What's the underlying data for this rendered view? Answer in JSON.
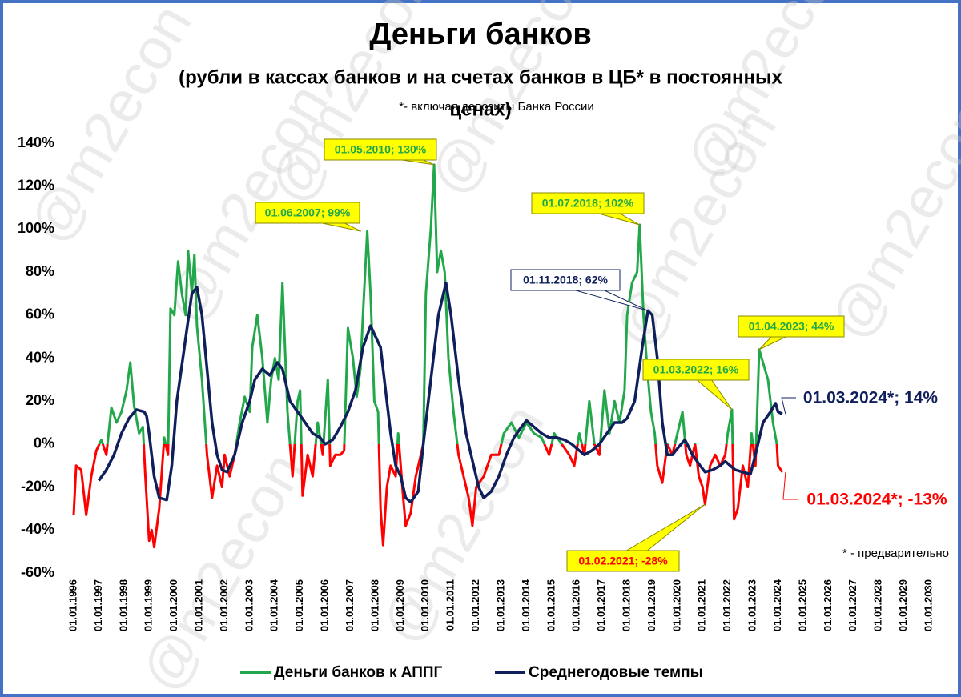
{
  "chart_data": {
    "type": "line",
    "title": "Деньги банков",
    "subtitle": [
      "(рубли в кассах банков и на счетах банков в ЦБ* в постоянных",
      "ценах)"
    ],
    "note": "*- включая депозиты Банка России",
    "footnote": "* - предварительно",
    "watermark": "@m2econ",
    "xlim": [
      1995.5,
      2030.5
    ],
    "xticks": [
      {
        "value": 1996,
        "label": "01.01.1996"
      },
      {
        "value": 1997,
        "label": "01.01.1997"
      },
      {
        "value": 1998,
        "label": "01.01.1998"
      },
      {
        "value": 1999,
        "label": "01.01.1999"
      },
      {
        "value": 2000,
        "label": "01.01.2000"
      },
      {
        "value": 2001,
        "label": "01.01.2001"
      },
      {
        "value": 2002,
        "label": "01.01.2002"
      },
      {
        "value": 2003,
        "label": "01.01.2003"
      },
      {
        "value": 2004,
        "label": "01.01.2004"
      },
      {
        "value": 2005,
        "label": "01.01.2005"
      },
      {
        "value": 2006,
        "label": "01.01.2006"
      },
      {
        "value": 2007,
        "label": "01.01.2007"
      },
      {
        "value": 2008,
        "label": "01.01.2008"
      },
      {
        "value": 2009,
        "label": "01.01.2009"
      },
      {
        "value": 2010,
        "label": "01.01.2010"
      },
      {
        "value": 2011,
        "label": "01.01.2011"
      },
      {
        "value": 2012,
        "label": "01.01.2012"
      },
      {
        "value": 2013,
        "label": "01.01.2013"
      },
      {
        "value": 2014,
        "label": "01.01.2014"
      },
      {
        "value": 2015,
        "label": "01.01.2015"
      },
      {
        "value": 2016,
        "label": "01.01.2016"
      },
      {
        "value": 2017,
        "label": "01.01.2017"
      },
      {
        "value": 2018,
        "label": "01.01.2018"
      },
      {
        "value": 2019,
        "label": "01.01.2019"
      },
      {
        "value": 2020,
        "label": "01.01.2020"
      },
      {
        "value": 2021,
        "label": "01.01.2021"
      },
      {
        "value": 2022,
        "label": "01.01.2022"
      },
      {
        "value": 2023,
        "label": "01.01.2023"
      },
      {
        "value": 2024,
        "label": "01.01.2024"
      },
      {
        "value": 2025,
        "label": "01.01.2025"
      },
      {
        "value": 2026,
        "label": "01.01.2026"
      },
      {
        "value": 2027,
        "label": "01.01.2027"
      },
      {
        "value": 2028,
        "label": "01.01.2028"
      },
      {
        "value": 2029,
        "label": "01.01.2029"
      },
      {
        "value": 2030,
        "label": "01.01.2030"
      }
    ],
    "ylim": [
      -60,
      140
    ],
    "yticks": [
      {
        "value": -60,
        "label": "-60%"
      },
      {
        "value": -40,
        "label": "-40%"
      },
      {
        "value": -20,
        "label": "-20%"
      },
      {
        "value": 0,
        "label": "0%"
      },
      {
        "value": 20,
        "label": "20%"
      },
      {
        "value": 40,
        "label": "40%"
      },
      {
        "value": 60,
        "label": "60%"
      },
      {
        "value": 80,
        "label": "80%"
      },
      {
        "value": 100,
        "label": "100%"
      },
      {
        "value": 120,
        "label": "120%"
      },
      {
        "value": 140,
        "label": "140%"
      }
    ],
    "grid": false,
    "series": [
      {
        "name": "Деньги банков к АППГ",
        "color": "#22a84a",
        "negative_color": "#ff0000",
        "x": [
          1996.0,
          1996.1,
          1996.3,
          1996.5,
          1996.7,
          1996.9,
          1997.1,
          1997.3,
          1997.5,
          1997.7,
          1997.9,
          1998.1,
          1998.25,
          1998.4,
          1998.6,
          1998.75,
          1998.85,
          1999.0,
          1999.1,
          1999.2,
          1999.4,
          1999.6,
          1999.75,
          1999.85,
          2000.0,
          2000.15,
          2000.3,
          2000.45,
          2000.55,
          2000.7,
          2000.8,
          2000.9,
          2001.1,
          2001.3,
          2001.5,
          2001.7,
          2001.9,
          2002.0,
          2002.2,
          2002.4,
          2002.6,
          2002.8,
          2003.0,
          2003.1,
          2003.3,
          2003.5,
          2003.7,
          2003.85,
          2004.0,
          2004.15,
          2004.3,
          2004.5,
          2004.7,
          2004.9,
          2005.0,
          2005.1,
          2005.3,
          2005.5,
          2005.7,
          2005.9,
          2006.1,
          2006.2,
          2006.4,
          2006.6,
          2006.75,
          2006.9,
          2007.1,
          2007.25,
          2007.4,
          2007.5,
          2007.67,
          2007.8,
          2007.95,
          2008.1,
          2008.2,
          2008.3,
          2008.45,
          2008.6,
          2008.8,
          2008.9,
          2009.1,
          2009.2,
          2009.4,
          2009.6,
          2009.8,
          2009.9,
          2010.0,
          2010.2,
          2010.33,
          2010.45,
          2010.6,
          2010.75,
          2010.9,
          2011.1,
          2011.3,
          2011.5,
          2011.7,
          2011.85,
          2012.0,
          2012.3,
          2012.6,
          2012.9,
          2013.1,
          2013.4,
          2013.7,
          2014.0,
          2014.3,
          2014.6,
          2014.9,
          2015.1,
          2015.4,
          2015.7,
          2015.9,
          2016.1,
          2016.3,
          2016.5,
          2016.7,
          2016.9,
          2017.1,
          2017.3,
          2017.5,
          2017.7,
          2017.9,
          2018.0,
          2018.2,
          2018.4,
          2018.5,
          2018.65,
          2018.8,
          2018.95,
          2019.1,
          2019.2,
          2019.4,
          2019.6,
          2019.8,
          2020.0,
          2020.2,
          2020.35,
          2020.5,
          2020.7,
          2020.85,
          2021.0,
          2021.1,
          2021.3,
          2021.5,
          2021.7,
          2021.9,
          2022.0,
          2022.17,
          2022.25,
          2022.4,
          2022.6,
          2022.8,
          2022.95,
          2023.1,
          2023.25,
          2023.4,
          2023.6,
          2023.8,
          2023.95,
          2024.0,
          2024.17
        ],
        "values": [
          -33,
          -10,
          -12,
          -33,
          -15,
          -3,
          2,
          -5,
          17,
          10,
          15,
          25,
          38,
          18,
          5,
          8,
          -15,
          -45,
          -40,
          -48,
          -30,
          3,
          -5,
          63,
          60,
          85,
          70,
          60,
          90,
          70,
          88,
          55,
          30,
          -5,
          -25,
          -10,
          -20,
          -5,
          -15,
          -5,
          10,
          22,
          15,
          45,
          60,
          40,
          10,
          30,
          40,
          30,
          75,
          15,
          -15,
          20,
          25,
          -24,
          -5,
          -15,
          10,
          -5,
          30,
          -10,
          -5,
          -5,
          -3,
          54,
          40,
          22,
          35,
          60,
          99,
          70,
          20,
          15,
          -30,
          -47,
          -20,
          -10,
          -15,
          5,
          -25,
          -38,
          -32,
          -15,
          -5,
          0,
          70,
          100,
          130,
          80,
          90,
          80,
          40,
          15,
          -5,
          -15,
          -25,
          -38,
          -20,
          -15,
          -5,
          -5,
          5,
          10,
          3,
          10,
          5,
          3,
          -5,
          5,
          0,
          -5,
          -10,
          5,
          -5,
          20,
          0,
          -5,
          25,
          5,
          20,
          10,
          25,
          60,
          75,
          80,
          102,
          60,
          35,
          15,
          5,
          -10,
          -18,
          0,
          -5,
          5,
          15,
          -5,
          -10,
          0,
          -15,
          -20,
          -28,
          -10,
          -5,
          -10,
          -5,
          5,
          16,
          -35,
          -30,
          -10,
          -20,
          5,
          -10,
          44,
          38,
          30,
          10,
          0,
          -10,
          -13
        ]
      },
      {
        "name": "Среднегодовые темпы",
        "color": "#0f1f5c",
        "x": [
          1997.0,
          1997.3,
          1997.6,
          1997.9,
          1998.2,
          1998.5,
          1998.8,
          1998.9,
          1999.0,
          1999.2,
          1999.4,
          1999.7,
          1999.9,
          2000.1,
          2000.4,
          2000.7,
          2000.9,
          2001.1,
          2001.3,
          2001.5,
          2001.7,
          2001.9,
          2002.1,
          2002.4,
          2002.7,
          2003.0,
          2003.2,
          2003.5,
          2003.8,
          2004.1,
          2004.3,
          2004.6,
          2004.9,
          2005.2,
          2005.5,
          2005.8,
          2006.0,
          2006.3,
          2006.6,
          2006.9,
          2007.2,
          2007.5,
          2007.8,
          2008.0,
          2008.2,
          2008.4,
          2008.6,
          2008.8,
          2009.0,
          2009.2,
          2009.4,
          2009.7,
          2009.9,
          2010.2,
          2010.5,
          2010.8,
          2011.0,
          2011.3,
          2011.6,
          2011.9,
          2012.1,
          2012.3,
          2012.6,
          2012.9,
          2013.2,
          2013.5,
          2013.8,
          2014.0,
          2014.3,
          2014.6,
          2014.9,
          2015.2,
          2015.5,
          2015.8,
          2016.0,
          2016.3,
          2016.6,
          2016.9,
          2017.2,
          2017.5,
          2017.8,
          2018.0,
          2018.3,
          2018.6,
          2018.83,
          2019.0,
          2019.2,
          2019.4,
          2019.6,
          2019.8,
          2020.0,
          2020.3,
          2020.6,
          2020.9,
          2021.1,
          2021.4,
          2021.7,
          2021.9,
          2022.1,
          2022.3,
          2022.6,
          2022.9,
          2023.1,
          2023.4,
          2023.7,
          2023.9,
          2024.0,
          2024.17
        ],
        "values": [
          -17,
          -12,
          -5,
          5,
          12,
          16,
          15,
          13,
          5,
          -15,
          -25,
          -26,
          -10,
          20,
          45,
          70,
          73,
          60,
          35,
          10,
          -5,
          -12,
          -13,
          -5,
          10,
          20,
          30,
          35,
          32,
          38,
          35,
          20,
          15,
          10,
          5,
          3,
          0,
          2,
          8,
          15,
          25,
          45,
          55,
          50,
          45,
          25,
          5,
          -10,
          -15,
          -25,
          -27,
          -22,
          0,
          30,
          60,
          75,
          60,
          30,
          5,
          -10,
          -20,
          -25,
          -22,
          -15,
          -5,
          3,
          8,
          11,
          8,
          5,
          3,
          3,
          2,
          0,
          -2,
          -5,
          -3,
          0,
          5,
          10,
          10,
          12,
          20,
          45,
          62,
          60,
          40,
          10,
          -5,
          -5,
          -2,
          2,
          -5,
          -10,
          -13,
          -12,
          -10,
          -8,
          -10,
          -12,
          -13,
          -14,
          -5,
          10,
          15,
          19,
          15,
          14
        ]
      }
    ],
    "annotations": [
      {
        "text": "01.06.2007; 99%",
        "x": 2007.42,
        "y": 99,
        "color": "#22a84a",
        "fill": "#ffff00"
      },
      {
        "text": "01.05.2010; 130%",
        "x": 2010.33,
        "y": 130,
        "color": "#22a84a",
        "fill": "#ffff00"
      },
      {
        "text": "01.07.2018; 102%",
        "x": 2018.5,
        "y": 102,
        "color": "#22a84a",
        "fill": "#ffff00"
      },
      {
        "text": "01.11.2018; 62%",
        "x": 2018.83,
        "y": 62,
        "color": "#0f1f5c",
        "fill": "#ffffff"
      },
      {
        "text": "01.04.2023; 44%",
        "x": 2023.25,
        "y": 44,
        "color": "#22a84a",
        "fill": "#ffff00"
      },
      {
        "text": "01.03.2022; 16%",
        "x": 2022.17,
        "y": 16,
        "color": "#22a84a",
        "fill": "#ffff00"
      },
      {
        "text": "01.02.2021; -28%",
        "x": 2021.1,
        "y": -28,
        "color": "#ff0000",
        "fill": "#ffff00"
      },
      {
        "text": "01.03.2024*; 14%",
        "x": 2024.17,
        "y": 14,
        "color": "#0f1f5c",
        "fill": "#ffffff"
      },
      {
        "text": "01.03.2024*; -13%",
        "x": 2024.17,
        "y": -13,
        "color": "#ff0000",
        "fill": "#ffffff"
      }
    ]
  }
}
